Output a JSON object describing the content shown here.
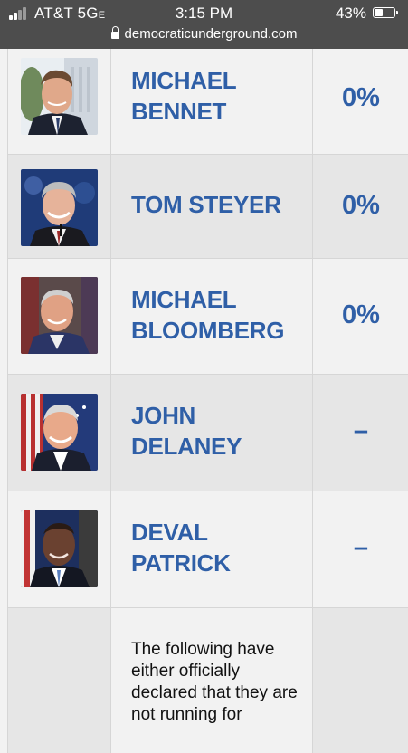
{
  "status_bar": {
    "carrier": "AT&T",
    "network": "5G",
    "network_suffix": "E",
    "time": "3:15 PM",
    "battery": "43%"
  },
  "address_bar": {
    "url": "democraticunderground.com"
  },
  "candidates": [
    {
      "name_line1": "MICHAEL",
      "name_line2": "BENNET",
      "percent": "0%"
    },
    {
      "name_line1": "TOM STEYER",
      "name_line2": "",
      "percent": "0%"
    },
    {
      "name_line1": "MICHAEL",
      "name_line2": "BLOOMBERG",
      "percent": "0%"
    },
    {
      "name_line1": "JOHN",
      "name_line2": "DELANEY",
      "percent": "–"
    },
    {
      "name_line1": "DEVAL",
      "name_line2": "PATRICK",
      "percent": "–"
    }
  ],
  "note": {
    "text": "The following have either officially declared that they are not running for"
  },
  "colors": {
    "accent": "#2f5fa7",
    "status_bar_bg": "#4d4d4d",
    "row_alt": "#e6e6e6",
    "row_plain": "#f2f2f2"
  }
}
